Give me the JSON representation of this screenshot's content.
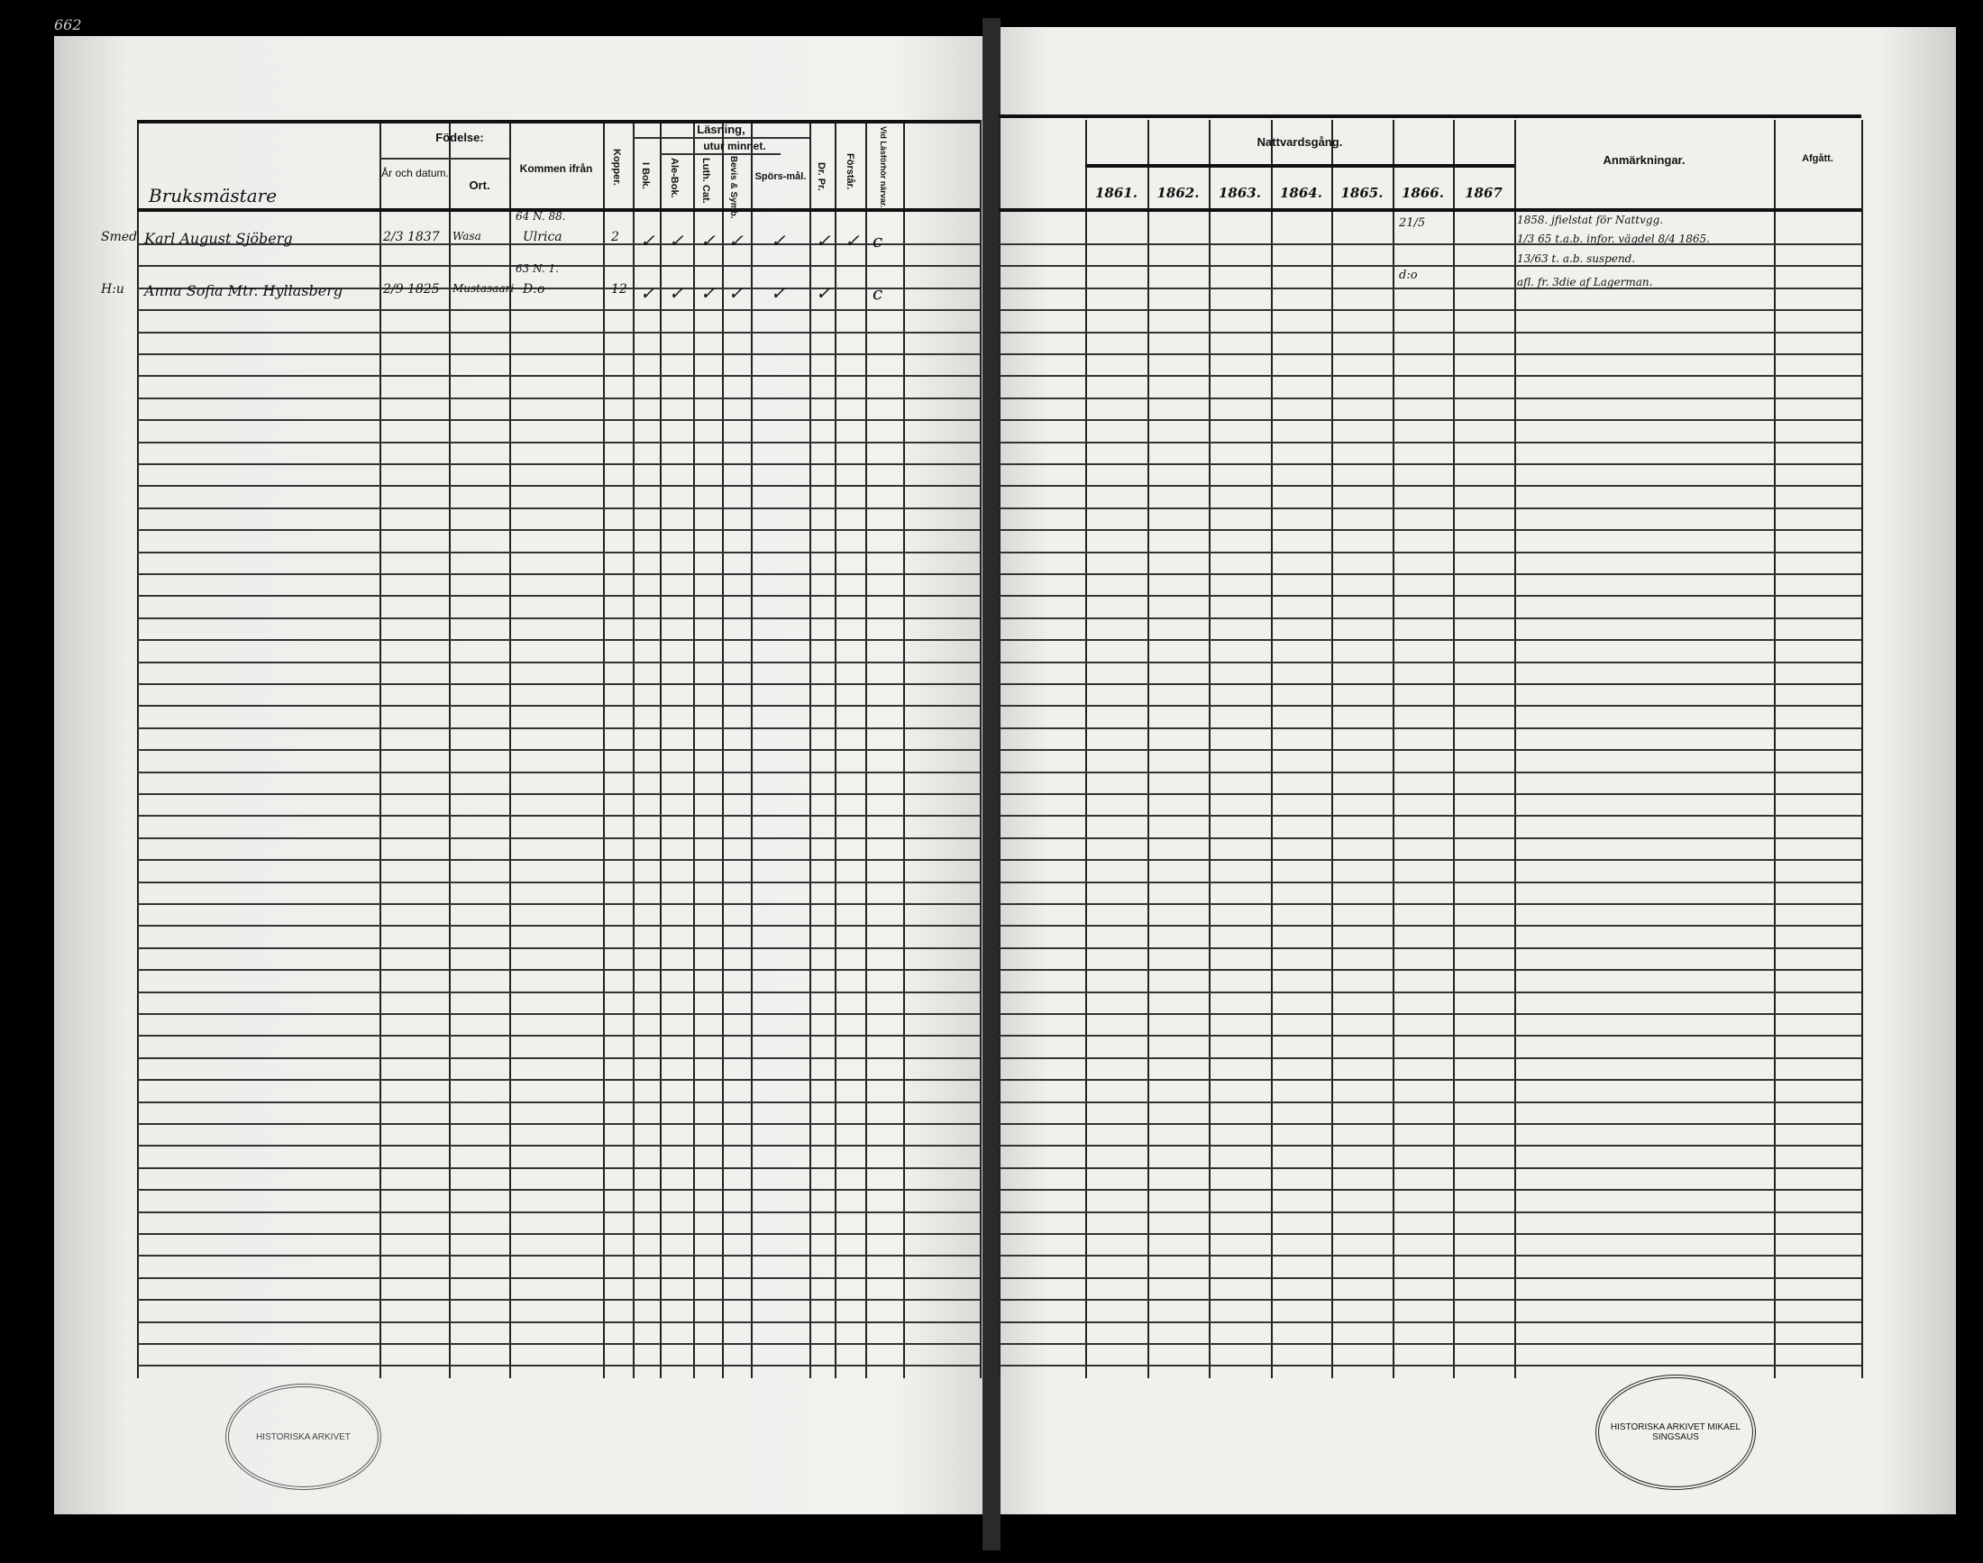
{
  "page_number": "662",
  "left_headers": {
    "fodelse": "Födelse:",
    "ar_och_datum": "År och datum.",
    "ort": "Ort.",
    "kommen_ifran": "Kommen ifrån",
    "kopper": "Kopper.",
    "lasning": "Läsning,",
    "utur_minnet": "utur minnet.",
    "i_bok": "I Bok.",
    "ale_bok": "Ale-Bok.",
    "luth_cat": "Luth. Cat.",
    "hasselius": "Bevis & Symb.",
    "sporsmal": "Spörs-mål.",
    "dr_pr": "Dr. Pr.",
    "forstar": "Förstår.",
    "vid_lasforhor": "Vid Läsförhör närvar."
  },
  "section_label": "Bruksmästare",
  "entries": [
    {
      "prefix": "Smed",
      "name": "Karl August Sjöberg",
      "born": "2/3 1837",
      "place": "Wasa",
      "from_line1": "64 N. 88.",
      "from_line2": "Ulrica",
      "kopper": "2",
      "marks": [
        "✓",
        "✓",
        "✓",
        "✓",
        "✓",
        "✓",
        "✓",
        "c"
      ]
    },
    {
      "prefix": "H:u",
      "name": "Anna Sofia Mtr. Hyllasberg",
      "born": "2/9 1825",
      "place": "Mustasaari",
      "from_line1": "63 N. 1.",
      "from_line2": "D:o",
      "kopper": "12",
      "marks": [
        "✓",
        "✓",
        "✓",
        "✓",
        "✓",
        "✓",
        "",
        "c"
      ]
    }
  ],
  "right_headers": {
    "nattvardsgang": "Nattvardsgång.",
    "years": [
      "1861.",
      "1862.",
      "1863.",
      "1864.",
      "1865.",
      "1866.",
      "1867"
    ],
    "anmarkningar": "Anmärkningar.",
    "afgatt": "Afgått."
  },
  "nattvard_1866": [
    "21/5",
    "d:o"
  ],
  "remarks": [
    "1858. jfielstat för Nattvgg.",
    "1/3 65 t.a.b. infor. vägdel 8/4 1865.",
    "13/63 t. a.b. suspend.",
    "afl. fr. 3die af Lagerman."
  ],
  "stamps": {
    "left": "HISTORISKA ARKIVET",
    "right": "HISTORISKA ARKIVET MIKAEL SINGSAUS"
  }
}
